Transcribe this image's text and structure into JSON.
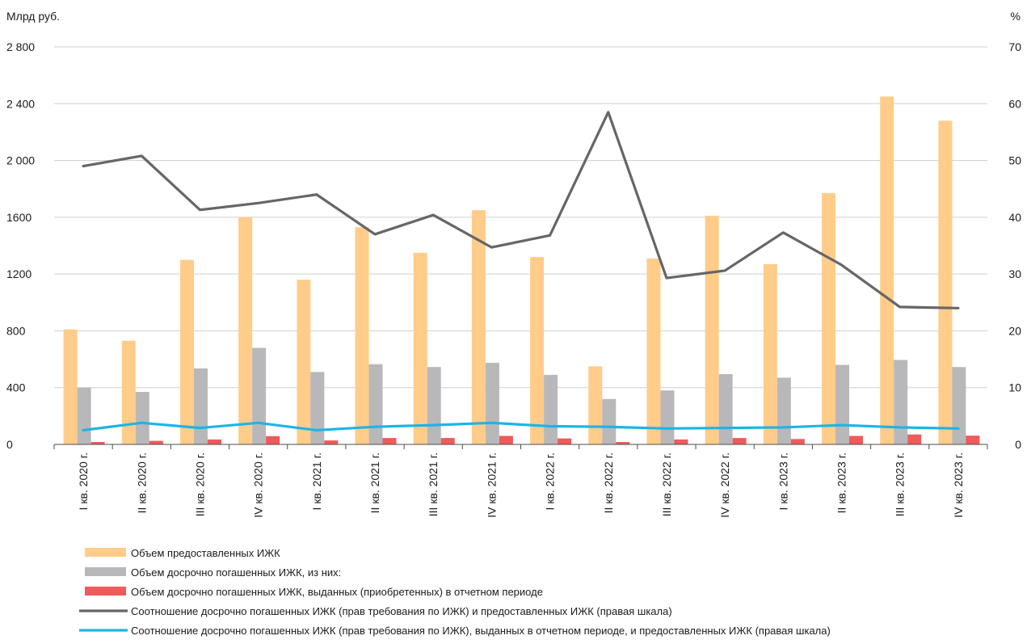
{
  "chart_data": {
    "type": "bar",
    "y_left_label": "Млрд руб.",
    "y_right_label": "%",
    "y_left_range": [
      0,
      2800
    ],
    "y_right_range": [
      0,
      70
    ],
    "y_left_ticks": [
      {
        "value": 0,
        "label": "0"
      },
      {
        "value": 400,
        "label": "400"
      },
      {
        "value": 800,
        "label": "800"
      },
      {
        "value": 1200,
        "label": "1200"
      },
      {
        "value": 1600,
        "label": "1600"
      },
      {
        "value": 2000,
        "label": "2 000"
      },
      {
        "value": 2400,
        "label": "2 400"
      },
      {
        "value": 2800,
        "label": "2 800"
      }
    ],
    "y_right_ticks": [
      {
        "value": 0,
        "label": "0"
      },
      {
        "value": 10,
        "label": "10"
      },
      {
        "value": 20,
        "label": "20"
      },
      {
        "value": 30,
        "label": "30"
      },
      {
        "value": 40,
        "label": "40"
      },
      {
        "value": 50,
        "label": "50"
      },
      {
        "value": 60,
        "label": "60"
      },
      {
        "value": 70,
        "label": "70"
      }
    ],
    "categories": [
      "I кв. 2020 г.",
      "II кв. 2020 г.",
      "III кв. 2020 г.",
      "IV кв. 2020 г.",
      "I кв. 2021 г.",
      "II кв. 2021 г.",
      "III кв. 2021 г.",
      "IV кв. 2021 г.",
      "I кв. 2022 г.",
      "II кв. 2022 г.",
      "III кв. 2022 г.",
      "IV кв. 2022 г.",
      "I кв. 2023 г.",
      "II кв. 2023 г.",
      "III кв. 2023 г.",
      "IV кв. 2023 г."
    ],
    "grid": "horizontal",
    "legend_position": "bottom",
    "series": [
      {
        "name": "Объем предоставленных ИЖК",
        "kind": "bar",
        "axis": "left",
        "color": "#FFCC8A",
        "values": [
          810,
          730,
          1300,
          1600,
          1160,
          1530,
          1350,
          1650,
          1320,
          550,
          1310,
          1610,
          1270,
          1770,
          2450,
          2280
        ]
      },
      {
        "name": "Объем досрочно погашенных ИЖК, из них:",
        "kind": "bar",
        "axis": "left",
        "color": "#B8B8BA",
        "values": [
          400,
          370,
          535,
          680,
          510,
          565,
          545,
          575,
          490,
          320,
          380,
          495,
          470,
          560,
          595,
          545
        ]
      },
      {
        "name": "Объем досрочно погашенных ИЖК, выданных (приобретенных) в отчетном периоде",
        "kind": "bar",
        "axis": "left",
        "color": "#F05A5A",
        "values": [
          17,
          25,
          35,
          58,
          28,
          45,
          45,
          60,
          42,
          17,
          35,
          45,
          38,
          60,
          70,
          62
        ]
      },
      {
        "name": "Соотношение досрочно погашенных ИЖК (прав требования по ИЖК) и предоставленных ИЖК (правая шкала)",
        "kind": "line",
        "axis": "right",
        "color": "#666666",
        "values": [
          49.0,
          50.8,
          41.3,
          42.5,
          44.0,
          37.0,
          40.4,
          34.7,
          36.8,
          58.5,
          29.3,
          30.6,
          37.3,
          31.6,
          24.2,
          24.0
        ]
      },
      {
        "name": "Соотношение досрочно погашенных ИЖК (прав требования по ИЖК), выданных в отчетном периоде, и предоставленных ИЖК (правая шкала)",
        "kind": "line",
        "axis": "right",
        "color": "#1EB4E6",
        "values": [
          2.5,
          3.8,
          2.9,
          3.8,
          2.5,
          3.1,
          3.4,
          3.8,
          3.2,
          3.1,
          2.8,
          2.9,
          3.0,
          3.4,
          3.0,
          2.8
        ]
      }
    ]
  }
}
